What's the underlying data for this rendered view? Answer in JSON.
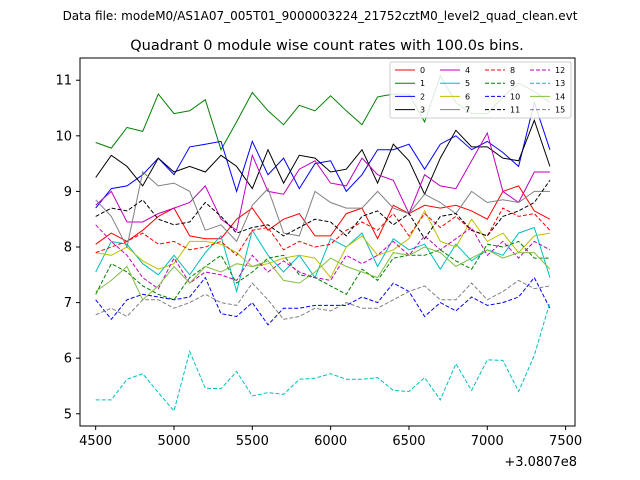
{
  "chart_data": {
    "type": "line",
    "suptitle": "Data file: modeM0/AS1A07_005T01_9000003224_21752cztM0_level2_quad_clean.evt",
    "title": "Quadrant 0 module wise count rates with 100.0s bins.",
    "xlabel": "",
    "ylabel": "",
    "offset_label": "+3.0807e8",
    "xlim": [
      4400,
      7560
    ],
    "ylim": [
      4.78,
      11.4
    ],
    "xticks": [
      4500,
      5000,
      5500,
      6000,
      6500,
      7000,
      7500
    ],
    "yticks": [
      5,
      6,
      7,
      8,
      9,
      10,
      11
    ],
    "x": [
      4500,
      4600,
      4700,
      4800,
      4900,
      5000,
      5100,
      5200,
      5300,
      5400,
      5500,
      5600,
      5700,
      5800,
      5900,
      6000,
      6100,
      6200,
      6300,
      6400,
      6500,
      6600,
      6700,
      6800,
      6900,
      7000,
      7100,
      7200,
      7300,
      7400
    ],
    "legend_position": "top-right",
    "series": [
      {
        "name": "0",
        "color": "#ff0000",
        "dash": "solid",
        "values": [
          8.05,
          8.25,
          8.1,
          8.3,
          8.55,
          8.7,
          8.2,
          8.15,
          8.15,
          8.5,
          8.7,
          8.3,
          8.5,
          8.6,
          8.2,
          8.2,
          8.6,
          8.7,
          8.15,
          8.75,
          8.6,
          8.75,
          8.7,
          8.75,
          8.65,
          8.5,
          9.0,
          9.1,
          8.65,
          8.5
        ]
      },
      {
        "name": "1",
        "color": "#008000",
        "dash": "solid",
        "values": [
          9.88,
          9.78,
          10.15,
          10.08,
          10.75,
          10.4,
          10.45,
          10.65,
          9.75,
          10.25,
          10.78,
          10.45,
          10.2,
          10.55,
          10.45,
          10.72,
          10.45,
          10.2,
          10.7,
          10.75,
          10.75,
          10.25,
          11.08,
          10.6,
          10.4,
          10.4,
          10.7,
          10.95,
          10.8,
          10.6
        ]
      },
      {
        "name": "2",
        "color": "#0000ff",
        "dash": "solid",
        "values": [
          8.7,
          9.05,
          9.1,
          9.3,
          9.6,
          9.3,
          9.8,
          9.85,
          9.9,
          9.0,
          9.9,
          9.3,
          9.6,
          9.05,
          9.5,
          9.55,
          9.0,
          9.3,
          9.75,
          9.75,
          9.85,
          9.4,
          9.85,
          10.0,
          9.75,
          9.9,
          9.7,
          9.45,
          10.6,
          9.75
        ]
      },
      {
        "name": "3",
        "color": "#000000",
        "dash": "solid",
        "values": [
          9.25,
          9.65,
          9.45,
          9.1,
          9.6,
          9.35,
          9.45,
          9.35,
          9.65,
          9.45,
          9.05,
          9.75,
          9.15,
          9.65,
          9.6,
          9.35,
          9.4,
          9.75,
          9.15,
          9.85,
          9.55,
          8.95,
          9.6,
          10.1,
          9.8,
          9.8,
          9.6,
          9.55,
          10.28,
          9.45
        ]
      },
      {
        "name": "4",
        "color": "#bf00bf",
        "dash": "solid",
        "values": [
          8.75,
          9.0,
          8.45,
          8.45,
          8.6,
          8.7,
          8.8,
          9.1,
          8.5,
          8.3,
          9.65,
          9.0,
          8.95,
          9.4,
          9.55,
          9.15,
          9.1,
          9.6,
          9.3,
          9.2,
          8.6,
          9.3,
          9.1,
          9.05,
          9.55,
          10.05,
          9.0,
          8.8,
          9.35,
          9.35
        ]
      },
      {
        "name": "5",
        "color": "#00bfbf",
        "dash": "solid",
        "values": [
          7.55,
          8.1,
          8.05,
          7.7,
          7.5,
          7.85,
          7.5,
          7.9,
          8.2,
          7.2,
          8.3,
          7.85,
          7.55,
          7.85,
          7.45,
          8.15,
          8.0,
          8.25,
          7.65,
          8.15,
          7.95,
          8.05,
          7.6,
          8.05,
          7.75,
          7.95,
          7.85,
          8.25,
          8.35,
          7.45
        ]
      },
      {
        "name": "6",
        "color": "#bfbf00",
        "dash": "solid",
        "values": [
          7.9,
          7.85,
          8.0,
          7.75,
          7.6,
          7.7,
          8.1,
          8.1,
          8.05,
          7.9,
          7.65,
          7.7,
          7.8,
          7.85,
          7.8,
          7.45,
          8.0,
          8.2,
          7.85,
          7.95,
          8.15,
          8.65,
          8.1,
          8.0,
          8.5,
          8.1,
          8.25,
          7.9,
          8.2,
          8.25
        ]
      },
      {
        "name": "7",
        "color": "#808080",
        "dash": "solid",
        "values": [
          8.85,
          8.55,
          8.0,
          9.35,
          9.1,
          9.15,
          9.0,
          8.3,
          8.4,
          8.1,
          8.75,
          9.05,
          8.25,
          8.2,
          9.0,
          8.8,
          8.7,
          8.7,
          9.0,
          8.7,
          8.6,
          8.95,
          8.8,
          8.6,
          9.0,
          8.8,
          8.85,
          8.8,
          9.0,
          9.0
        ]
      },
      {
        "name": "8",
        "color": "#ff0000",
        "dash": "dashed",
        "values": [
          7.9,
          8.0,
          8.1,
          8.25,
          8.05,
          8.1,
          7.95,
          8.0,
          8.1,
          7.85,
          8.3,
          8.35,
          7.95,
          8.1,
          8.0,
          8.05,
          8.3,
          8.45,
          8.3,
          8.6,
          8.2,
          8.6,
          8.35,
          8.55,
          8.3,
          8.2,
          8.7,
          8.55,
          8.6,
          8.3
        ]
      },
      {
        "name": "9",
        "color": "#008000",
        "dash": "dashed",
        "values": [
          7.15,
          7.7,
          7.55,
          7.3,
          7.15,
          7.05,
          7.45,
          7.65,
          7.85,
          7.35,
          7.55,
          7.8,
          7.85,
          7.5,
          7.45,
          7.3,
          7.15,
          7.6,
          7.4,
          7.8,
          7.85,
          7.85,
          7.95,
          7.75,
          7.6,
          8.05,
          8.0,
          8.1,
          7.8,
          7.8
        ]
      },
      {
        "name": "10",
        "color": "#0000ff",
        "dash": "dashed",
        "values": [
          7.05,
          6.7,
          7.05,
          7.15,
          7.1,
          7.05,
          7.1,
          7.45,
          6.8,
          6.75,
          7.0,
          6.6,
          6.9,
          6.9,
          6.95,
          6.95,
          6.95,
          7.1,
          7.0,
          7.35,
          7.2,
          6.75,
          7.0,
          6.85,
          7.1,
          6.95,
          7.0,
          7.1,
          7.45,
          6.9
        ]
      },
      {
        "name": "11",
        "color": "#000000",
        "dash": "dashed",
        "values": [
          8.55,
          8.7,
          8.65,
          8.85,
          8.5,
          8.4,
          8.45,
          8.8,
          8.55,
          8.25,
          8.35,
          8.4,
          8.2,
          8.35,
          8.5,
          8.45,
          8.2,
          8.55,
          8.65,
          8.4,
          8.6,
          8.15,
          8.55,
          8.6,
          8.3,
          8.2,
          8.55,
          8.65,
          8.8,
          9.2
        ]
      },
      {
        "name": "12",
        "color": "#bf00bf",
        "dash": "dashed",
        "values": [
          8.4,
          8.1,
          7.85,
          7.45,
          7.25,
          7.8,
          7.35,
          7.55,
          7.5,
          7.4,
          7.85,
          7.55,
          7.75,
          7.55,
          7.45,
          7.4,
          7.85,
          7.7,
          7.85,
          8.1,
          7.85,
          8.2,
          7.95,
          8.15,
          8.35,
          7.85,
          8.1,
          7.8,
          8.1,
          7.95
        ]
      },
      {
        "name": "13",
        "color": "#00bfbf",
        "dash": "dashed",
        "values": [
          5.25,
          5.25,
          5.62,
          5.72,
          5.38,
          5.05,
          6.12,
          5.46,
          5.45,
          5.76,
          5.32,
          5.38,
          5.35,
          5.62,
          5.64,
          5.72,
          5.62,
          5.62,
          5.65,
          5.42,
          5.4,
          5.65,
          5.25,
          5.9,
          5.42,
          5.97,
          5.96,
          5.4,
          6.05,
          7.0
        ]
      },
      {
        "name": "14",
        "color": "#80bf40",
        "dash": "solid",
        "values": [
          7.2,
          7.4,
          7.65,
          7.05,
          7.3,
          7.65,
          7.35,
          7.65,
          7.55,
          7.7,
          7.65,
          7.75,
          7.4,
          7.35,
          7.55,
          7.8,
          7.65,
          7.55,
          7.45,
          7.9,
          7.85,
          8.0,
          7.9,
          7.65,
          7.8,
          7.95,
          7.8,
          7.9,
          7.9,
          7.6
        ]
      },
      {
        "name": "15",
        "color": "#808080",
        "dash": "dashed",
        "values": [
          6.78,
          6.9,
          6.75,
          7.05,
          7.05,
          6.9,
          7.0,
          7.15,
          7.0,
          6.95,
          7.35,
          7.05,
          6.7,
          6.75,
          6.9,
          6.85,
          7.0,
          6.9,
          6.9,
          7.05,
          7.2,
          7.3,
          7.05,
          7.05,
          7.35,
          7.05,
          7.2,
          7.4,
          7.25,
          7.3
        ]
      }
    ]
  }
}
